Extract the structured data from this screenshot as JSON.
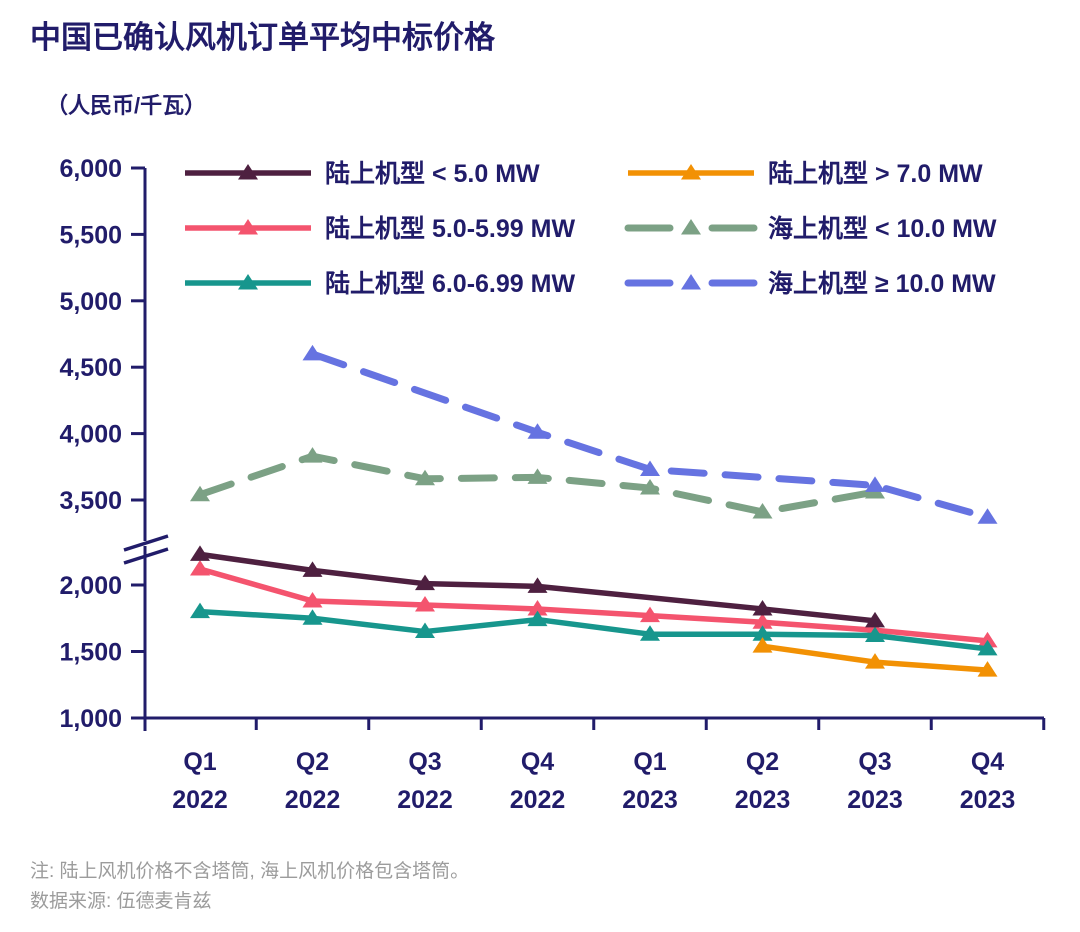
{
  "page": {
    "title": "中国已确认风机订单平均中标价格",
    "subtitle": "（人民币/千瓦）",
    "note": "注: 陆上风机价格不含塔筒, 海上风机价格包含塔筒。",
    "source": "数据来源: 伍德麦肯兹"
  },
  "colors": {
    "text_navy": "#211c6a",
    "axis": "#211c6a",
    "note_gray": "#9c9c9c",
    "background": "#ffffff"
  },
  "chart_data": {
    "type": "line",
    "title": "中国已确认风机订单平均中标价格",
    "unit_label": "（人民币/千瓦）",
    "categories": [
      "Q1 2022",
      "Q2 2022",
      "Q3 2022",
      "Q4 2022",
      "Q1 2023",
      "Q2 2023",
      "Q3 2023",
      "Q4 2023"
    ],
    "y_axis": {
      "ticks_lower": [
        1000,
        1500,
        2000
      ],
      "ticks_upper": [
        3500,
        4000,
        4500,
        5000,
        5500,
        6000
      ],
      "axis_break_between": [
        2000,
        3500
      ],
      "ylim_lower_segment": [
        1000,
        2300
      ],
      "ylim_upper_segment": [
        3350,
        6000
      ]
    },
    "grid": false,
    "legend": {
      "position": "top",
      "columns": [
        [
          0,
          1,
          2
        ],
        [
          3,
          4,
          5
        ]
      ]
    },
    "series": [
      {
        "name": "陆上机型 < 5.0 MW",
        "color": "#4e2040",
        "style": "solid",
        "values": [
          2230,
          2110,
          2010,
          1990,
          null,
          1820,
          1730,
          null
        ]
      },
      {
        "name": "陆上机型 5.0-5.99 MW",
        "color": "#f4546e",
        "style": "solid",
        "values": [
          2120,
          1880,
          1850,
          1820,
          1770,
          1720,
          1660,
          1580
        ]
      },
      {
        "name": "陆上机型 6.0-6.99 MW",
        "color": "#17968d",
        "style": "solid",
        "values": [
          1800,
          1750,
          1650,
          1740,
          1630,
          1630,
          1620,
          1520
        ]
      },
      {
        "name": "陆上机型 > 7.0 MW",
        "color": "#f29104",
        "style": "solid",
        "values": [
          null,
          null,
          null,
          null,
          null,
          1540,
          1420,
          1360
        ]
      },
      {
        "name": "海上机型 < 10.0 MW",
        "color": "#7ca185",
        "style": "dashed",
        "values": [
          3540,
          3830,
          3660,
          3670,
          3590,
          3410,
          3560,
          null
        ]
      },
      {
        "name": "海上机型 ≥ 10.0 MW",
        "color": "#6673e1",
        "style": "dashed",
        "values": [
          null,
          4600,
          null,
          4010,
          3730,
          null,
          3610,
          3370
        ]
      }
    ]
  }
}
